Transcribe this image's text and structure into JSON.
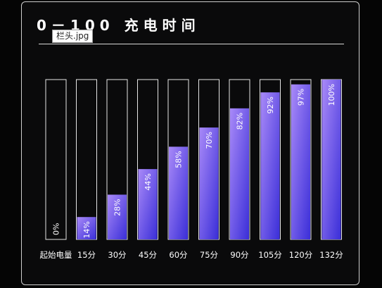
{
  "title": "0－100 充电时间",
  "tooltip": "栏头.jpg",
  "colors": {
    "background": "#050505",
    "panel_border": "#cfcfcf",
    "bar_outline": "#e6e6e6",
    "fill_light": "#a98af8",
    "fill_dark": "#3a2ed8"
  },
  "chart_data": {
    "type": "bar",
    "title": "0－100 充电时间",
    "categories": [
      "起始电量",
      "15分",
      "30分",
      "45分",
      "60分",
      "75分",
      "90分",
      "105分",
      "120分",
      "132分"
    ],
    "values": [
      0,
      14,
      28,
      44,
      58,
      70,
      82,
      92,
      97,
      100
    ],
    "value_labels": [
      "0%",
      "14%",
      "28%",
      "44%",
      "58%",
      "70%",
      "82%",
      "92%",
      "97%",
      "100%"
    ],
    "ylim": [
      0,
      100
    ],
    "grid": false,
    "legend": "none"
  }
}
